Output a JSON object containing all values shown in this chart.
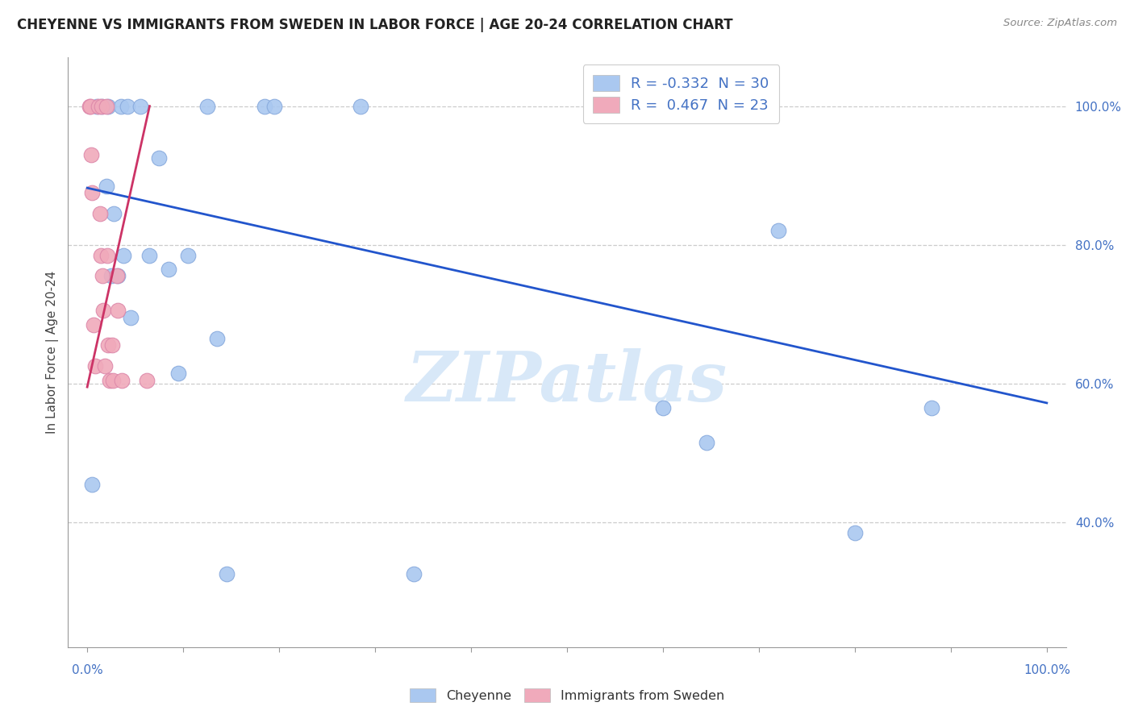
{
  "title": "CHEYENNE VS IMMIGRANTS FROM SWEDEN IN LABOR FORCE | AGE 20-24 CORRELATION CHART",
  "source": "Source: ZipAtlas.com",
  "ylabel": "In Labor Force | Age 20-24",
  "ytick_labels": [
    "40.0%",
    "60.0%",
    "80.0%",
    "100.0%"
  ],
  "ytick_values": [
    0.4,
    0.6,
    0.8,
    1.0
  ],
  "xlim": [
    -0.02,
    1.02
  ],
  "ylim": [
    0.22,
    1.07
  ],
  "cheyenne_color": "#aac8f0",
  "cheyenne_edge": "#88aadd",
  "sweden_color": "#f0aabb",
  "sweden_edge": "#dd88aa",
  "trend_blue": "#2255cc",
  "trend_pink": "#cc3366",
  "watermark_color": "#d8e8f8",
  "label_color": "#4472C4",
  "title_color": "#222222",
  "cheyenne_x": [
    0.005,
    0.01,
    0.015,
    0.02,
    0.022,
    0.025,
    0.028,
    0.032,
    0.035,
    0.038,
    0.042,
    0.045,
    0.055,
    0.065,
    0.075,
    0.085,
    0.095,
    0.105,
    0.125,
    0.135,
    0.145,
    0.185,
    0.195,
    0.285,
    0.34,
    0.6,
    0.645,
    0.72,
    0.8,
    0.88
  ],
  "cheyenne_y": [
    0.455,
    1.0,
    1.0,
    0.885,
    1.0,
    0.755,
    0.845,
    0.755,
    1.0,
    0.785,
    1.0,
    0.695,
    1.0,
    0.785,
    0.925,
    0.765,
    0.615,
    0.785,
    1.0,
    0.665,
    0.325,
    1.0,
    1.0,
    1.0,
    0.325,
    0.565,
    0.515,
    0.82,
    0.385,
    0.565
  ],
  "sweden_x": [
    0.002,
    0.003,
    0.004,
    0.005,
    0.007,
    0.008,
    0.012,
    0.013,
    0.014,
    0.015,
    0.016,
    0.017,
    0.018,
    0.02,
    0.021,
    0.022,
    0.023,
    0.026,
    0.027,
    0.031,
    0.032,
    0.036,
    0.062
  ],
  "sweden_y": [
    1.0,
    1.0,
    0.93,
    0.875,
    0.685,
    0.625,
    1.0,
    0.845,
    0.785,
    1.0,
    0.755,
    0.705,
    0.625,
    1.0,
    0.785,
    0.655,
    0.605,
    0.655,
    0.605,
    0.755,
    0.705,
    0.605,
    0.605
  ],
  "blue_trend_x0": 0.0,
  "blue_trend_y0": 0.882,
  "blue_trend_x1": 1.0,
  "blue_trend_y1": 0.572,
  "pink_trend_x0": 0.0,
  "pink_trend_y0": 0.595,
  "pink_trend_x1": 0.065,
  "pink_trend_y1": 1.0
}
